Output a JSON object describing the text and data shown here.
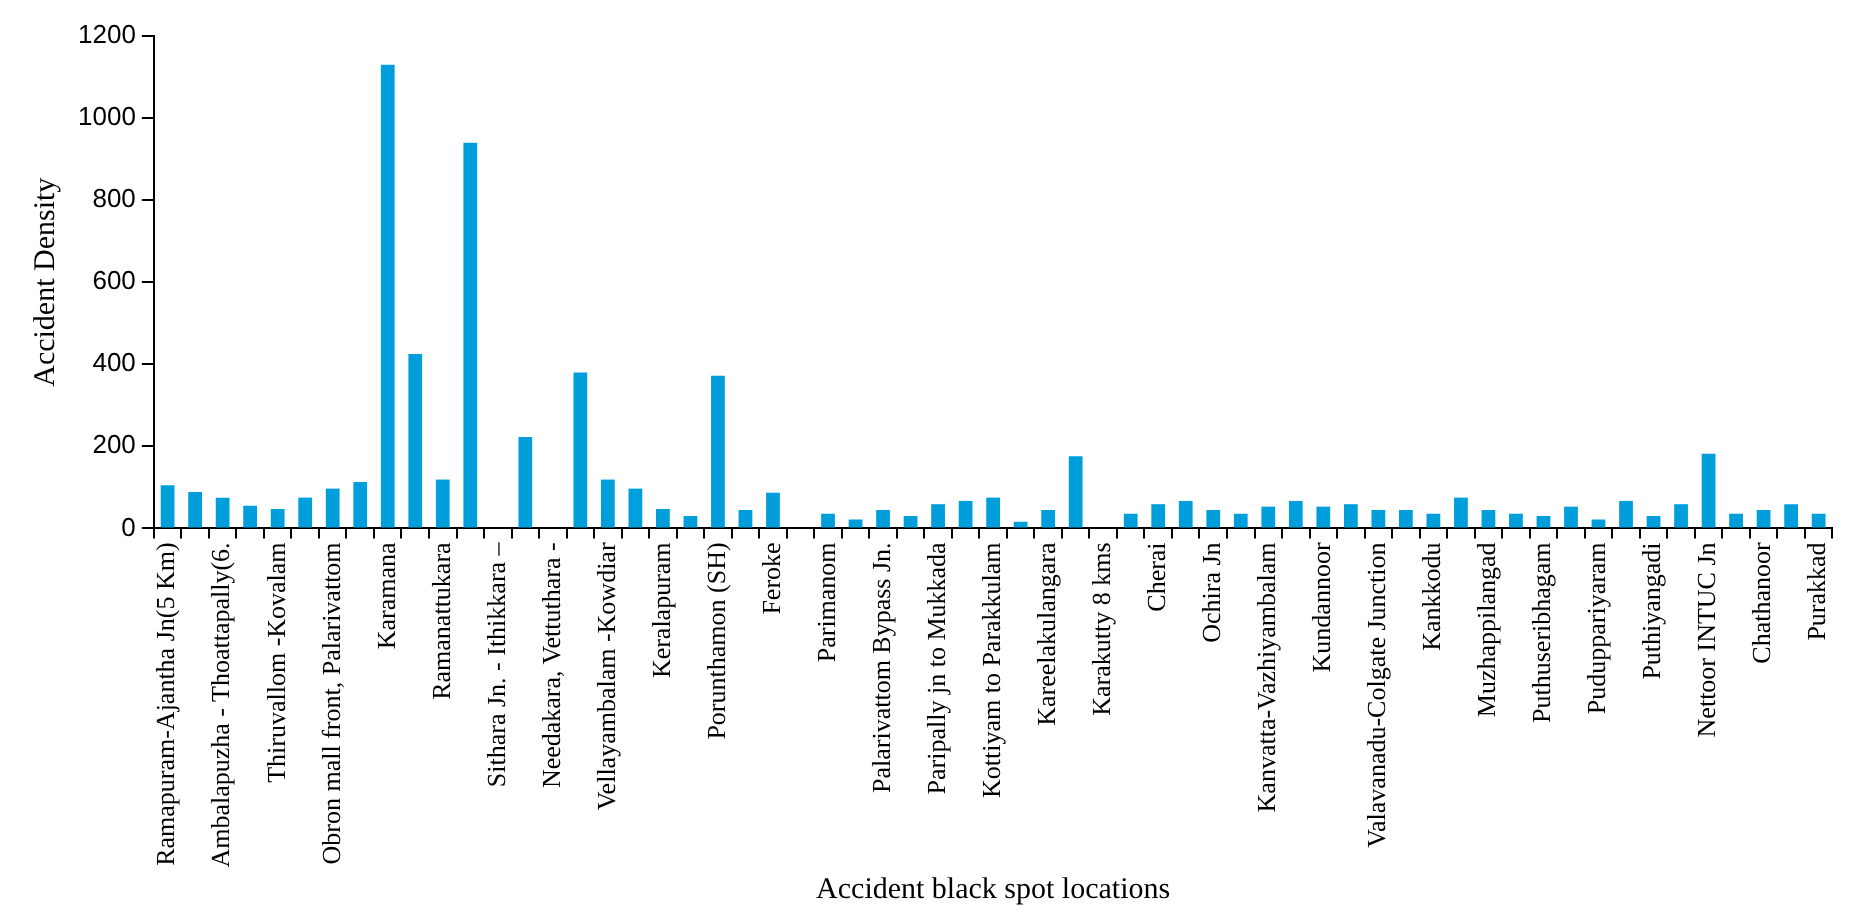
{
  "chart_data": {
    "type": "bar",
    "xlabel": "Accident black spot locations",
    "ylabel": "Accident Density",
    "categories": [
      "Ramapuram-Ajantha Jn(5 Km)",
      null,
      "Ambalapuzha - Thoattapally(6.",
      null,
      "Thiruvallom -Kovalam",
      null,
      "Obron mall front, Palarivattom",
      null,
      "Karamana",
      null,
      "Ramanattukara",
      null,
      "Sithara Jn. - Ithikkara –",
      null,
      "Needakara, Vettuthara -",
      null,
      "Vellayambalam -Kowdiar",
      null,
      "Keralapuram",
      null,
      "Porunthamon (SH)",
      null,
      "Feroke",
      null,
      "Parimanom",
      null,
      "Palarivattom Bypass Jn.",
      null,
      "Paripally jn to Mukkada",
      null,
      "Kottiyam to Parakkulam",
      null,
      "Kareelakulangara",
      null,
      "Karakutty 8 kms",
      null,
      "Cherai",
      null,
      "Ochira Jn",
      null,
      "Kanvatta-Vazhiyambalam",
      null,
      "Kundannoor",
      null,
      "Valavanadu-Colgate Junction",
      null,
      "Kankkodu",
      null,
      "Muzhappilangad",
      null,
      "Puthuseribhagam",
      null,
      "Puduppariyaram",
      null,
      "Puthiyangadi",
      null,
      "Nettoor INTUC Jn",
      null,
      "Chathanoor",
      null,
      "Purakkad"
    ],
    "values": [
      105,
      89,
      75,
      55,
      47,
      75,
      97,
      113,
      1130,
      425,
      119,
      940,
      0,
      223,
      0,
      380,
      119,
      97,
      47,
      30,
      372,
      45,
      87,
      0,
      36,
      22,
      45,
      30,
      59,
      67,
      75,
      16,
      45,
      176,
      0,
      36,
      59,
      67,
      45,
      36,
      53,
      67,
      53,
      59,
      45,
      45,
      36,
      75,
      45,
      36,
      30,
      53,
      22,
      67,
      30,
      59,
      182,
      36,
      45,
      59,
      36
    ],
    "color": "#009fdc",
    "ylim": [
      0,
      1200
    ],
    "yticks": [
      0,
      200,
      400,
      600,
      800,
      1000,
      1200
    ],
    "grid": false,
    "legend": false
  }
}
